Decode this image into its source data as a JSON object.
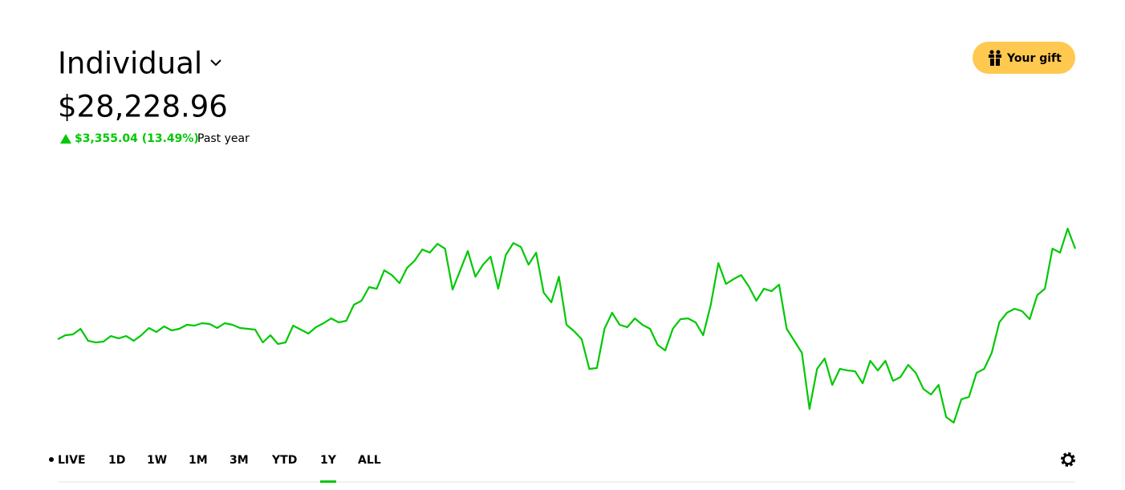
{
  "header": {
    "account": "Individual",
    "balance": "$28,228.96",
    "change": "$3,355.04 (13.49%)",
    "period": "Past year"
  },
  "gift_button": "Your gift",
  "tabs": [
    "LIVE",
    "1D",
    "1W",
    "1M",
    "3M",
    "YTD",
    "1Y",
    "ALL"
  ],
  "active_tab": 6,
  "chart_data": {
    "type": "line",
    "color": "#00c805",
    "ylim": [
      21100,
      31500
    ],
    "values": [
      24873.92,
      25022,
      25052,
      25260,
      24815,
      24755,
      24785,
      24993,
      24904,
      24993,
      24815,
      25022,
      25290,
      25141,
      25349,
      25201,
      25260,
      25409,
      25379,
      25468,
      25438,
      25290,
      25468,
      25409,
      25290,
      25260,
      25230,
      24755,
      25022,
      24696,
      24755,
      25379,
      25230,
      25082,
      25320,
      25468,
      25646,
      25498,
      25557,
      26151,
      26300,
      26805,
      26745,
      27428,
      27250,
      26953,
      27517,
      27785,
      28200,
      28082,
      28408,
      28230,
      26715,
      27428,
      28141,
      27191,
      27636,
      27933,
      26745,
      27993,
      28438,
      28290,
      27636,
      28082,
      26597,
      26240,
      27191,
      25409,
      25171,
      24874,
      23775,
      23805,
      25260,
      25854,
      25409,
      25320,
      25646,
      25409,
      25260,
      24666,
      24458,
      25260,
      25616,
      25646,
      25498,
      25022,
      26151,
      27696,
      26923,
      27102,
      27250,
      26834,
      26300,
      26745,
      26656,
      26894,
      25260,
      24815,
      24369,
      22290,
      23775,
      24161,
      23181,
      23775,
      23716,
      23686,
      23241,
      24072,
      23716,
      24072,
      23330,
      23478,
      23924,
      23627,
      23033,
      22825,
      23181,
      21993,
      21785,
      22647,
      22736,
      23627,
      23775,
      24369,
      25498,
      25854,
      26003,
      25914,
      25616,
      26508,
      26745,
      28230,
      28082,
      28973,
      28228.96
    ]
  }
}
